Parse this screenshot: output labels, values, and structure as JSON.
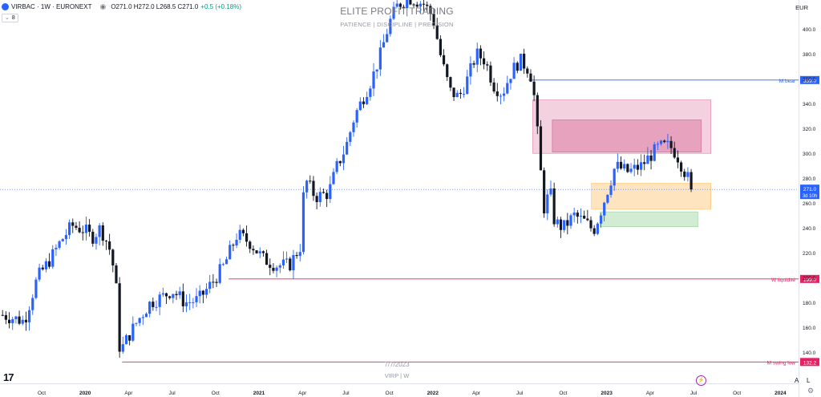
{
  "header": {
    "symbol": "VIRBAC · 1W · EURONEXT",
    "ohlc": "O271.0 H272.0 L268.5 C271.0",
    "change": "+0.5 (+0.18%)",
    "indicator_count": "8"
  },
  "watermark": {
    "title": "ELITE PROFIT TRADING",
    "subtitle": "PATIENCE  |  DISCIPLINE  |  PRECISION",
    "date": "7/7/2023",
    "ticker": "VIRP | W"
  },
  "axis": {
    "currency": "EUR",
    "auto_label": "A",
    "log_label": "L"
  },
  "colors": {
    "up": "#2962ff",
    "down": "#131722",
    "supply_zone": "#c2185b",
    "order_block": "#ff9800",
    "demand_zone": "#4caf50",
    "level_blue": "#2962ff",
    "level_pink": "#e91e63"
  },
  "chart_data": {
    "type": "candlestick",
    "ylim": [
      115,
      415
    ],
    "y_ticks": [
      140,
      160,
      180,
      200,
      220,
      240,
      260,
      280,
      300,
      320,
      340,
      360,
      380,
      400
    ],
    "x_labels": [
      {
        "t": 0.0,
        "label": "Oct"
      },
      {
        "t": 1.0,
        "label": "2020"
      },
      {
        "t": 2.0,
        "label": "Apr"
      },
      {
        "t": 3.0,
        "label": "Jul"
      },
      {
        "t": 4.0,
        "label": "Oct"
      },
      {
        "t": 5.0,
        "label": "2021"
      },
      {
        "t": 6.0,
        "label": "Apr"
      },
      {
        "t": 7.0,
        "label": "Jul"
      },
      {
        "t": 8.0,
        "label": "Oct"
      },
      {
        "t": 9.0,
        "label": "2022"
      },
      {
        "t": 10.0,
        "label": "Apr"
      },
      {
        "t": 11.0,
        "label": "Jul"
      },
      {
        "t": 12.0,
        "label": "Oct"
      },
      {
        "t": 13.0,
        "label": "2023"
      },
      {
        "t": 14.0,
        "label": "Apr"
      },
      {
        "t": 15.0,
        "label": "Jul"
      },
      {
        "t": 16.0,
        "label": "Oct"
      },
      {
        "t": 17.0,
        "label": "2024"
      }
    ],
    "path": [
      [
        -0.9,
        170
      ],
      [
        -0.4,
        165
      ],
      [
        -0.1,
        200
      ],
      [
        0.2,
        215
      ],
      [
        0.45,
        230
      ],
      [
        0.7,
        242
      ],
      [
        1.0,
        238
      ],
      [
        1.15,
        232
      ],
      [
        1.35,
        240
      ],
      [
        1.55,
        225
      ],
      [
        1.7,
        200
      ],
      [
        1.8,
        140
      ],
      [
        1.95,
        150
      ],
      [
        2.2,
        165
      ],
      [
        2.5,
        180
      ],
      [
        2.8,
        185
      ],
      [
        3.0,
        190
      ],
      [
        3.3,
        180
      ],
      [
        3.6,
        182
      ],
      [
        3.9,
        195
      ],
      [
        4.2,
        210
      ],
      [
        4.5,
        235
      ],
      [
        4.8,
        228
      ],
      [
        5.1,
        215
      ],
      [
        5.4,
        210
      ],
      [
        5.7,
        210
      ],
      [
        5.95,
        225
      ],
      [
        6.05,
        280
      ],
      [
        6.3,
        265
      ],
      [
        6.6,
        268
      ],
      [
        6.8,
        290
      ],
      [
        7.0,
        305
      ],
      [
        7.2,
        330
      ],
      [
        7.4,
        345
      ],
      [
        7.6,
        360
      ],
      [
        7.8,
        380
      ],
      [
        8.0,
        405
      ],
      [
        8.2,
        420
      ],
      [
        8.5,
        425
      ],
      [
        8.8,
        420
      ],
      [
        9.0,
        410
      ],
      [
        9.2,
        375
      ],
      [
        9.4,
        350
      ],
      [
        9.6,
        345
      ],
      [
        9.8,
        360
      ],
      [
        10.0,
        380
      ],
      [
        10.2,
        375
      ],
      [
        10.4,
        355
      ],
      [
        10.6,
        348
      ],
      [
        10.8,
        365
      ],
      [
        11.0,
        375
      ],
      [
        11.2,
        368
      ],
      [
        11.3,
        358
      ],
      [
        11.45,
        300
      ],
      [
        11.55,
        255
      ],
      [
        11.7,
        270
      ],
      [
        11.8,
        245
      ],
      [
        12.0,
        240
      ],
      [
        12.25,
        250
      ],
      [
        12.5,
        245
      ],
      [
        12.7,
        238
      ],
      [
        12.85,
        252
      ],
      [
        13.0,
        268
      ],
      [
        13.2,
        290
      ],
      [
        13.5,
        285
      ],
      [
        13.8,
        290
      ],
      [
        14.0,
        298
      ],
      [
        14.2,
        305
      ],
      [
        14.45,
        306
      ],
      [
        14.6,
        300
      ],
      [
        14.8,
        285
      ],
      [
        15.0,
        271
      ]
    ],
    "last_price": 271.0,
    "zones": [
      {
        "t1": 11.3,
        "t2": 15.4,
        "y1": 300,
        "y2": 343,
        "color": "#c2185b",
        "alpha": 0.2
      },
      {
        "t1": 11.75,
        "t2": 15.18,
        "y1": 301,
        "y2": 327,
        "color": "#c2185b",
        "alpha": 0.25
      },
      {
        "t1": 12.65,
        "t2": 15.4,
        "y1": 255,
        "y2": 276,
        "color": "#ff9800",
        "alpha": 0.25
      },
      {
        "t1": 12.85,
        "t2": 15.1,
        "y1": 241,
        "y2": 253,
        "color": "#4caf50",
        "alpha": 0.25
      }
    ],
    "levels": [
      {
        "y": 359.0,
        "t1": 11.2,
        "color": "#2962ff",
        "label": "M bear",
        "value": "359.0"
      },
      {
        "y": 199.0,
        "t1": 4.3,
        "color": "#e91e63",
        "label": "W liquidité",
        "value": "199.0"
      },
      {
        "y": 132.2,
        "t1": 1.85,
        "color": "#e91e63",
        "label": "M swing low",
        "value": "132.2"
      }
    ],
    "current_badge": {
      "value": "271.0",
      "countdown": "3d 10h"
    }
  }
}
